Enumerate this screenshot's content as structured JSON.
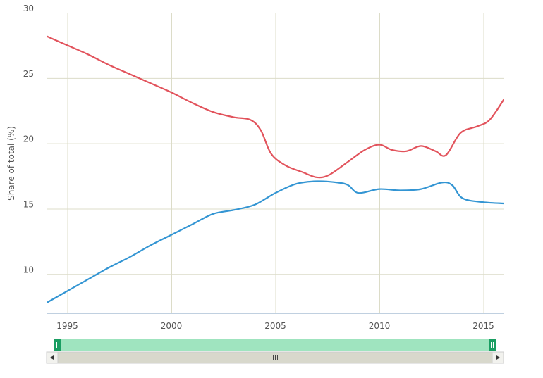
{
  "chart_data": {
    "type": "line",
    "title": "",
    "xlabel": "",
    "ylabel": "Share of total (%)",
    "xlim": [
      1994,
      2016
    ],
    "ylim": [
      7,
      30
    ],
    "x_ticks": [
      "1995",
      "2000",
      "2005",
      "2010",
      "2015"
    ],
    "y_ticks": [
      "10",
      "15",
      "20",
      "25",
      "30"
    ],
    "grid": true,
    "legend": "none",
    "series": [
      {
        "color": "#e2535c",
        "x": [
          1994,
          1995,
          1996,
          1997,
          1998,
          1999,
          2000,
          2001,
          2002,
          2003,
          2003.8,
          2004.3,
          2004.8,
          2005.5,
          2006.3,
          2007,
          2007.6,
          2008.5,
          2009.3,
          2010,
          2010.6,
          2011.3,
          2012,
          2012.7,
          2013.2,
          2013.9,
          2014.7,
          2015.3,
          2016
        ],
        "y": [
          28.2,
          27.5,
          26.8,
          26.0,
          25.3,
          24.6,
          23.9,
          23.1,
          22.4,
          22.0,
          21.8,
          21.0,
          19.2,
          18.3,
          17.8,
          17.4,
          17.6,
          18.6,
          19.5,
          19.9,
          19.5,
          19.4,
          19.8,
          19.4,
          19.1,
          20.8,
          21.3,
          21.8,
          23.4
        ]
      },
      {
        "color": "#3395d3",
        "x": [
          1994,
          1995,
          1996,
          1997,
          1998,
          1999,
          2000,
          2001,
          2002,
          2003,
          2004,
          2005,
          2006,
          2007,
          2008,
          2008.5,
          2009,
          2010,
          2011,
          2012,
          2013,
          2013.5,
          2014,
          2015,
          2016
        ],
        "y": [
          7.8,
          8.7,
          9.6,
          10.5,
          11.3,
          12.2,
          13.0,
          13.8,
          14.6,
          14.9,
          15.3,
          16.2,
          16.9,
          17.1,
          17.0,
          16.8,
          16.2,
          16.5,
          16.4,
          16.5,
          17.0,
          16.8,
          15.8,
          15.5,
          15.4
        ]
      }
    ]
  },
  "navigator": {
    "left_handle_icon": "grip-icon",
    "right_handle_icon": "grip-icon",
    "scroll_left_icon": "arrow-left-icon",
    "scroll_right_icon": "arrow-right-icon",
    "scroll_thumb_icon": "grip-icon",
    "selection_color": "#9fe4bf",
    "handle_color": "#1a9e62",
    "scrollbar_color": "#d8d8cc"
  }
}
